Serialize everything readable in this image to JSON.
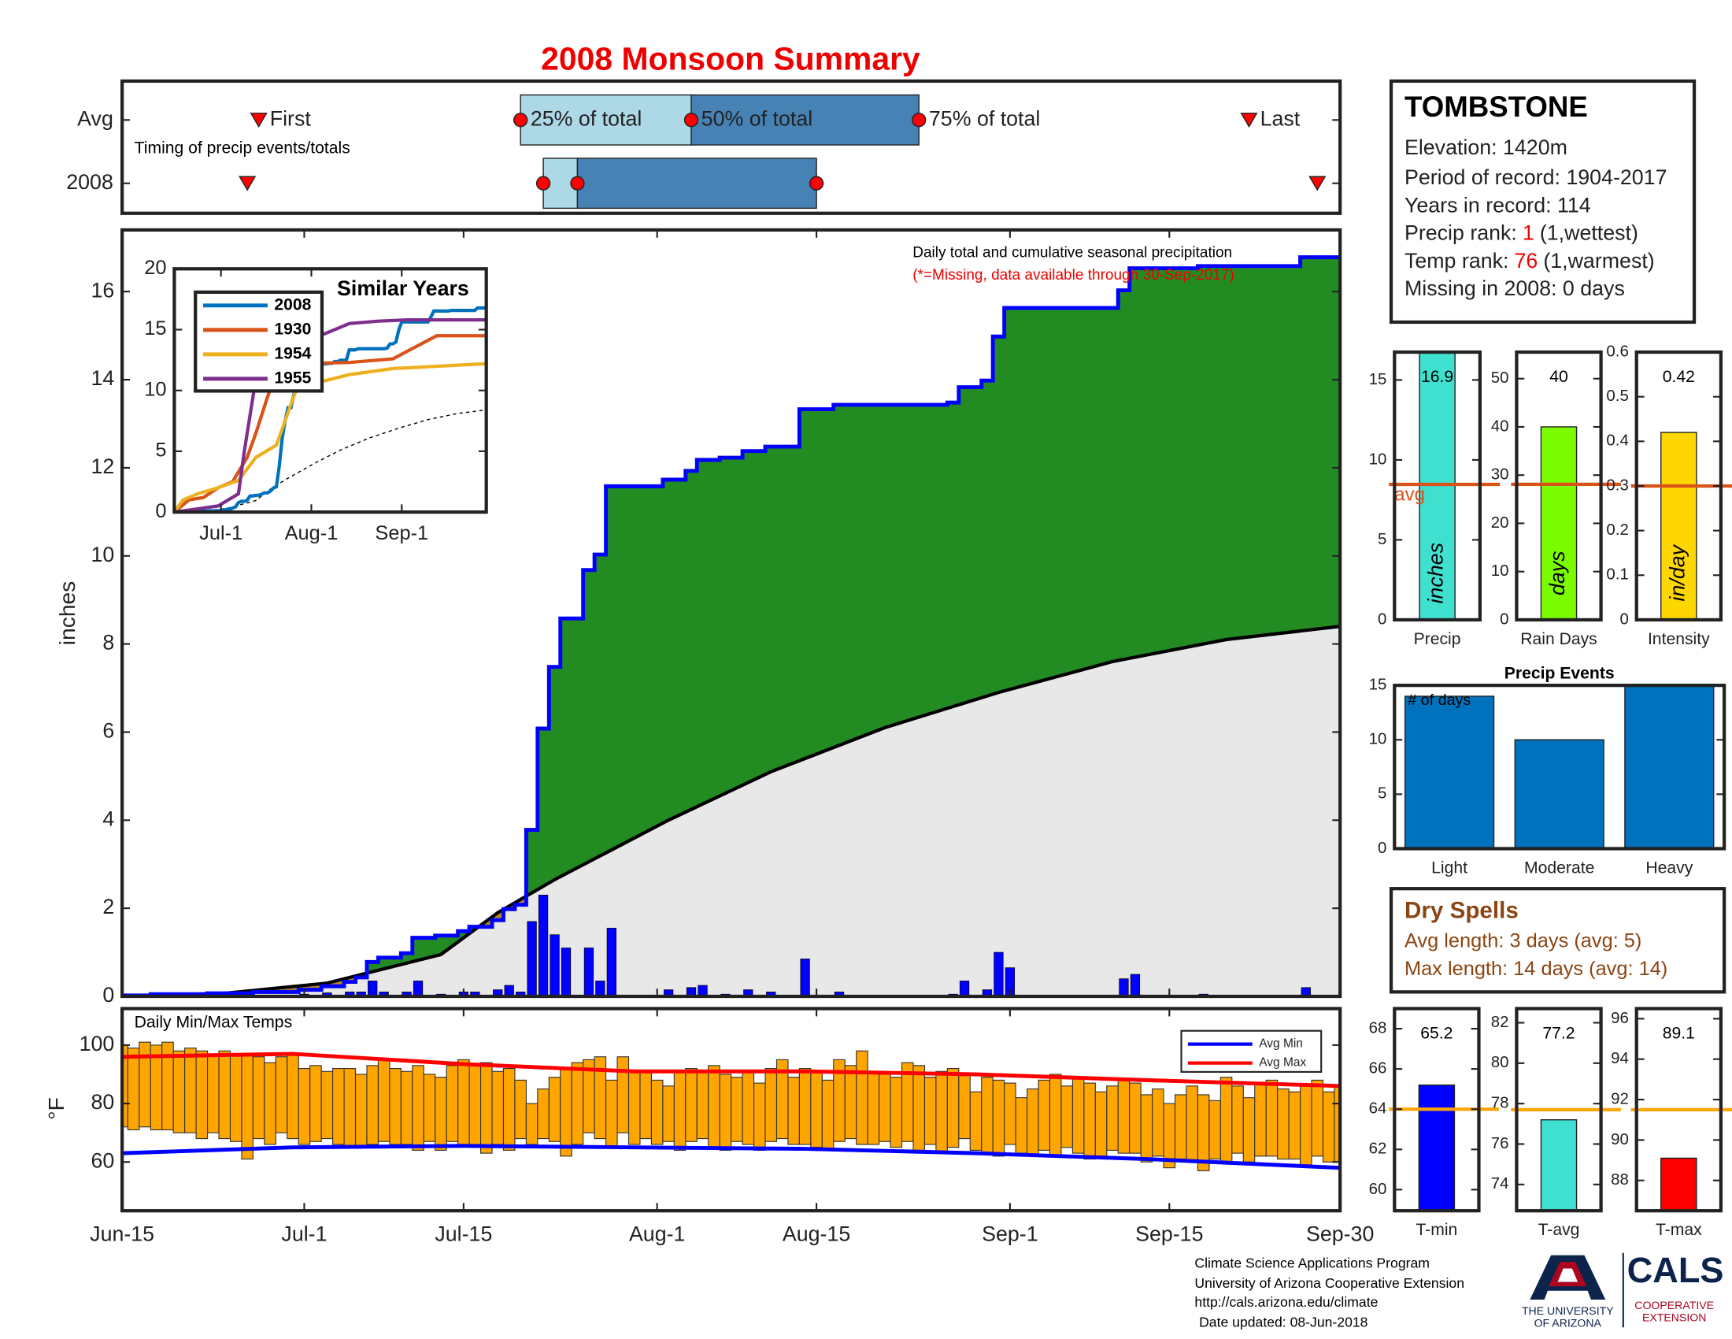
{
  "title": "2008 Monsoon Summary",
  "chart_data": [
    {
      "type": "cumulative",
      "annotation": "Daily total and cumulative seasonal precipitation",
      "note": "(*=Missing, data available through 30-Sep-2017)",
      "ylabel": "inches",
      "xlim": [
        0,
        107
      ],
      "ylim": [
        0,
        17.4
      ],
      "xticks": [
        0,
        16,
        30,
        47,
        61,
        78,
        92,
        107
      ],
      "yticks": [
        0,
        2,
        4,
        6,
        8,
        10,
        12,
        14,
        16
      ],
      "daily_precip": {
        "color": "#0000ff",
        "values": [
          0.02,
          0,
          0,
          0.03,
          0,
          0,
          0,
          0,
          0.02,
          0,
          0,
          0,
          0.03,
          0,
          0,
          0,
          0.05,
          0,
          0.08,
          0,
          0.1,
          0.1,
          0.35,
          0.1,
          0,
          0.1,
          0.35,
          0,
          0.05,
          0,
          0.1,
          0.1,
          0,
          0.15,
          0.25,
          0.1,
          1.7,
          2.3,
          1.4,
          1.1,
          0,
          1.1,
          0.35,
          1.55,
          0,
          0,
          0,
          0,
          0.15,
          0,
          0.2,
          0.25,
          0,
          0.05,
          0,
          0.15,
          0,
          0.1,
          0,
          0,
          0.85,
          0,
          0,
          0.1,
          0,
          0,
          0,
          0,
          0,
          0,
          0,
          0,
          0,
          0.05,
          0.35,
          0,
          0.15,
          1.0,
          0.65,
          0,
          0,
          0,
          0,
          0,
          0,
          0,
          0,
          0,
          0.4,
          0.5,
          0,
          0,
          0,
          0,
          0,
          0.05,
          0,
          0,
          0,
          0,
          0,
          0,
          0,
          0,
          0.2,
          0,
          0,
          0
        ]
      },
      "cumulative_color": "#0000ff",
      "avg_cumulative": {
        "color": "#000000",
        "x": [
          0,
          9,
          18,
          28,
          33,
          38,
          48,
          57,
          67,
          77,
          87,
          97,
          107
        ],
        "values": [
          0,
          0.07,
          0.3,
          0.95,
          1.9,
          2.65,
          4.0,
          5.1,
          6.1,
          6.9,
          7.6,
          8.1,
          8.4
        ]
      },
      "above_avg_color": "#228b22",
      "below_avg_color": "#b8862b",
      "base_color": "#e8e8e8"
    },
    {
      "type": "timing",
      "annotation": "Timing of precip events/totals",
      "xlim": [
        0,
        107
      ],
      "labels": {
        "first": "First",
        "p25": "25% of total",
        "p50": "50% of total",
        "p75": "75% of total",
        "last": "Last"
      },
      "rows": [
        {
          "label": "Avg",
          "first": 12,
          "p25": 35,
          "p50": 50,
          "p75": 70,
          "last": 99
        },
        {
          "label": "2008",
          "first": 11,
          "p25": 37,
          "p50": 40,
          "p75": 61,
          "last": 105
        }
      ],
      "light_color": "#add8e6",
      "dark_color": "#4682b4",
      "marker_color": "#ff0000"
    },
    {
      "type": "range_bar",
      "title": "Daily Min/Max Temps",
      "ylabel": "°F",
      "xlim": [
        0,
        107
      ],
      "ylim": [
        43.3,
        112.5
      ],
      "yticks": [
        60,
        80,
        100
      ],
      "xticks": [
        {
          "value": 0,
          "label": "Jun-15"
        },
        {
          "value": 16,
          "label": "Jul-1"
        },
        {
          "value": 30,
          "label": "Jul-15"
        },
        {
          "value": 47,
          "label": "Aug-1"
        },
        {
          "value": 61,
          "label": "Aug-15"
        },
        {
          "value": 78,
          "label": "Sep-1"
        },
        {
          "value": 92,
          "label": "Sep-15"
        },
        {
          "value": 107,
          "label": "Sep-30"
        }
      ],
      "color": "#ffa500",
      "max": [
        100,
        99,
        101,
        100,
        101,
        98,
        99,
        98,
        97,
        98,
        97,
        97,
        96,
        94,
        96,
        97,
        92,
        93,
        91,
        92,
        92,
        90,
        93,
        95,
        92,
        91,
        93,
        90,
        89,
        93,
        95,
        93,
        94,
        91,
        92,
        88,
        80,
        85,
        89,
        92,
        94,
        95,
        96,
        88,
        96,
        91,
        91,
        88,
        86,
        91,
        92,
        91,
        93,
        90,
        89,
        91,
        87,
        92,
        95,
        89,
        92,
        91,
        88,
        95,
        93,
        98,
        91,
        90,
        89,
        94,
        93,
        89,
        91,
        92,
        90,
        84,
        89,
        88,
        87,
        82,
        85,
        88,
        90,
        86,
        89,
        87,
        84,
        86,
        88,
        87,
        83,
        85,
        80,
        83,
        86,
        83,
        81,
        89,
        86,
        82,
        87,
        88,
        85,
        84,
        86,
        88,
        84,
        86
      ],
      "min": [
        72,
        71,
        72,
        71,
        71,
        70,
        70,
        68,
        70,
        68,
        67,
        61,
        68,
        66,
        70,
        68,
        66,
        67,
        68,
        66,
        65,
        65,
        66,
        67,
        66,
        66,
        64,
        67,
        64,
        67,
        66,
        65,
        63,
        66,
        64,
        68,
        66,
        68,
        67,
        62,
        66,
        70,
        68,
        65,
        70,
        66,
        68,
        66,
        67,
        64,
        67,
        68,
        65,
        64,
        67,
        66,
        64,
        67,
        68,
        66,
        66,
        65,
        64,
        67,
        68,
        66,
        66,
        67,
        65,
        67,
        64,
        66,
        63,
        65,
        68,
        64,
        63,
        62,
        66,
        63,
        62,
        64,
        62,
        65,
        63,
        61,
        62,
        64,
        63,
        63,
        60,
        62,
        58,
        61,
        60,
        57,
        61,
        60,
        63,
        60,
        62,
        62,
        61,
        61,
        59,
        62,
        60,
        60
      ],
      "series": [
        {
          "name": "Avg Min",
          "color": "#0000ff",
          "x": [
            0,
            15,
            30,
            45,
            60,
            75,
            90,
            107
          ],
          "values": [
            63,
            65,
            65.5,
            65,
            64.5,
            63,
            61,
            58
          ]
        },
        {
          "name": "Avg Max",
          "color": "#ff0000",
          "x": [
            0,
            15,
            30,
            45,
            60,
            75,
            90,
            107
          ],
          "values": [
            96,
            97,
            93.5,
            91,
            91,
            90,
            88,
            86
          ]
        }
      ]
    },
    {
      "type": "line",
      "title": "Similar Years",
      "xlim": [
        0,
        107
      ],
      "ylim": [
        0,
        20
      ],
      "yticks": [
        0,
        5,
        10,
        15,
        20
      ],
      "xticks": [
        {
          "value": 16,
          "label": "Jul-1"
        },
        {
          "value": 47,
          "label": "Aug-1"
        },
        {
          "value": 78,
          "label": "Sep-1"
        }
      ],
      "series": [
        {
          "name": "2008",
          "color": "#0072bd"
        },
        {
          "name": "1930",
          "color": "#d95319",
          "x": [
            0,
            5,
            10,
            15,
            20,
            25,
            28,
            32,
            36,
            42,
            60,
            75,
            90,
            107
          ],
          "values": [
            0,
            1,
            1.2,
            2,
            2.5,
            4.5,
            6.5,
            9.5,
            12,
            12.2,
            12.3,
            12.6,
            14.5,
            14.5
          ]
        },
        {
          "name": "1954",
          "color": "#edb120",
          "x": [
            0,
            3,
            8,
            15,
            22,
            28,
            35,
            42,
            50,
            60,
            75,
            107
          ],
          "values": [
            0,
            1,
            1.5,
            2,
            2.6,
            4.5,
            5.5,
            10.2,
            10.7,
            11.3,
            11.8,
            12.2
          ]
        },
        {
          "name": "1955",
          "color": "#7e2f8e",
          "x": [
            0,
            15,
            22,
            24,
            28,
            33,
            40,
            50,
            60,
            70,
            80,
            107
          ],
          "values": [
            0,
            0.5,
            1.5,
            5,
            11,
            12,
            13.5,
            14.5,
            15.5,
            15.7,
            15.8,
            15.8
          ]
        }
      ]
    },
    {
      "type": "stat_bar",
      "xlabel": "Precip",
      "unit_label": "inches",
      "value": 16.9,
      "avg": 8.47,
      "avg_label": "avg",
      "ylim": [
        0,
        16.74
      ],
      "yticks": [
        0,
        5,
        10,
        15
      ],
      "color": "#40e0d0",
      "avg_color": "#d95319"
    },
    {
      "type": "stat_bar",
      "xlabel": "Rain Days",
      "unit_label": "days",
      "value": 40,
      "avg": 28.1,
      "ylim": [
        0,
        55.5
      ],
      "yticks": [
        0,
        10,
        20,
        30,
        40,
        50
      ],
      "color": "#7cfc00",
      "avg_color": "#d95319"
    },
    {
      "type": "stat_bar",
      "xlabel": "Intensity",
      "unit_label": "in/day",
      "value": 0.42,
      "avg": 0.3,
      "ylim": [
        0,
        0.6
      ],
      "yticks": [
        0,
        0.1,
        0.2,
        0.3,
        0.4,
        0.5,
        0.6
      ],
      "color": "#ffd700",
      "avg_color": "#d95319"
    },
    {
      "type": "bar",
      "title": "Precip Events",
      "annotation": "# of days",
      "categories": [
        "Light",
        "Moderate",
        "Heavy"
      ],
      "values": [
        14,
        10,
        15
      ],
      "color": "#0072bd",
      "ylim": [
        0,
        15
      ],
      "yticks": [
        0,
        5,
        10,
        15
      ]
    },
    {
      "type": "stat_bar",
      "xlabel": "T-min",
      "value": 65.2,
      "avg": 64,
      "ylim": [
        58.95,
        69
      ],
      "yticks": [
        60,
        62,
        64,
        66,
        68
      ],
      "color": "#0000ff",
      "avg_color": "#ffa500"
    },
    {
      "type": "stat_bar",
      "xlabel": "T-avg",
      "value": 77.2,
      "avg": 77.7,
      "ylim": [
        72.7,
        82.7
      ],
      "yticks": [
        74,
        76,
        78,
        80,
        82
      ],
      "color": "#40e0d0",
      "avg_color": "#ffa500"
    },
    {
      "type": "stat_bar",
      "xlabel": "T-max",
      "value": 89.1,
      "avg": 91.5,
      "ylim": [
        86.5,
        96.5
      ],
      "yticks": [
        88,
        90,
        92,
        94,
        96
      ],
      "color": "#ff0000",
      "avg_color": "#ffa500"
    }
  ],
  "info": {
    "station": "TOMBSTONE",
    "elevation": "Elevation: 1420m",
    "period": "Period of record: 1904-2017",
    "years": "Years in record: 114",
    "precip_rank": {
      "label": "Precip rank:",
      "rank": 1,
      "note": "(1,wettest)"
    },
    "temp_rank": {
      "label": "Temp rank:",
      "rank": 76,
      "note": "(1,warmest)"
    },
    "missing": "Missing in 2008: 0 days"
  },
  "dry_spells": {
    "title": "Dry Spells",
    "avg": "Avg length: 3 days (avg: 5)",
    "max": "Max length: 14 days (avg: 14)"
  },
  "footer": {
    "lines": [
      "Climate Science Applications Program",
      "University of Arizona Cooperative Extension",
      "http://cals.arizona.edu/climate",
      "Date updated: 08-Jun-2018"
    ],
    "university": [
      "THE UNIVERSITY",
      "OF ARIZONA"
    ],
    "cals": "CALS",
    "extension": [
      "COOPERATIVE",
      "EXTENSION"
    ]
  }
}
